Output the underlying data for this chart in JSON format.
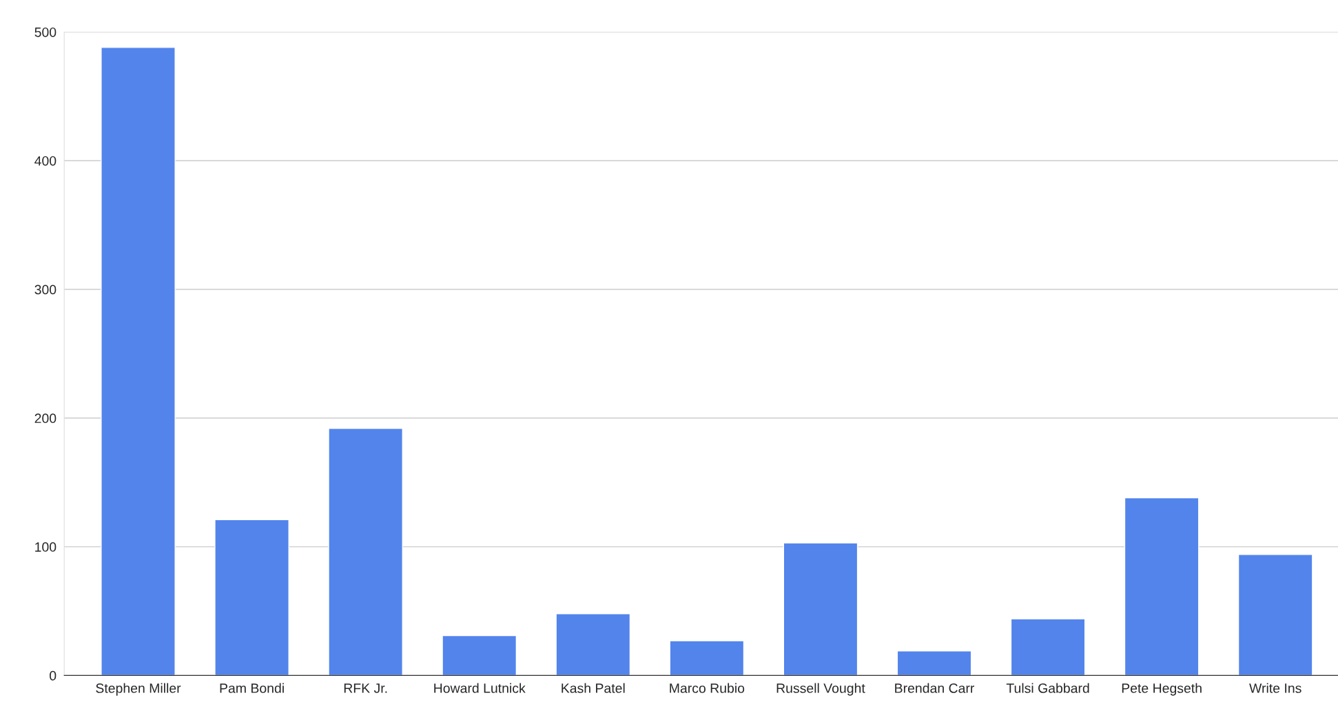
{
  "chart_data": {
    "type": "bar",
    "categories": [
      "Stephen Miller",
      "Pam Bondi",
      "RFK Jr.",
      "Howard Lutnick",
      "Kash Patel",
      "Marco Rubio",
      "Russell Vought",
      "Brendan Carr",
      "Tulsi Gabbard",
      "Pete Hegseth",
      "Write Ins"
    ],
    "values": [
      488,
      121,
      192,
      31,
      48,
      27,
      103,
      19,
      44,
      138,
      94
    ],
    "color": "#5384ec",
    "ylim": [
      0,
      500
    ],
    "yticks": [
      0,
      100,
      200,
      300,
      400,
      500
    ],
    "grid": "y"
  }
}
